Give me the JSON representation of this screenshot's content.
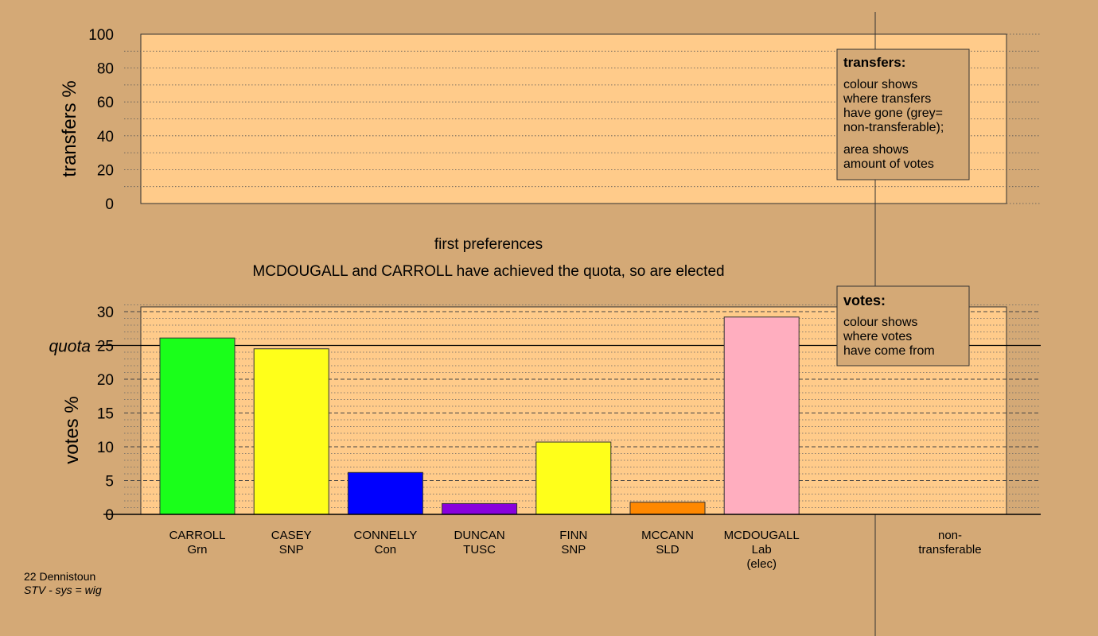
{
  "transfers_chart": {
    "ylabel": "transfers %",
    "ylim": [
      0,
      100
    ],
    "ticks": [
      "0",
      "20",
      "40",
      "60",
      "80",
      "100"
    ],
    "legend": {
      "title": "transfers:",
      "lines1": [
        "colour shows",
        "where transfers",
        "have gone (grey=",
        "non-transferable);"
      ],
      "lines2": [
        "area shows",
        "amount of votes"
      ]
    }
  },
  "stage_title": "first preferences",
  "status_message": "MCDOUGALL and CARROLL have achieved the quota, so are elected",
  "chart_data": {
    "type": "bar",
    "ylabel": "votes %",
    "ylim": [
      0,
      30
    ],
    "ticks": [
      "0",
      "5",
      "10",
      "15",
      "20",
      "25",
      "30"
    ],
    "quota": {
      "label": "quota",
      "value": 25
    },
    "categories": [
      {
        "name": "CARROLL",
        "party": "Grn",
        "note": "",
        "value": 26.1,
        "color": "#1aff1a"
      },
      {
        "name": "CASEY",
        "party": "SNP",
        "note": "",
        "value": 24.5,
        "color": "#ffff1a"
      },
      {
        "name": "CONNELLY",
        "party": "Con",
        "note": "",
        "value": 6.2,
        "color": "#0000ff"
      },
      {
        "name": "DUNCAN",
        "party": "TUSC",
        "note": "",
        "value": 1.6,
        "color": "#8800dd"
      },
      {
        "name": "FINN",
        "party": "SNP",
        "note": "",
        "value": 10.7,
        "color": "#ffff1a"
      },
      {
        "name": "MCCANN",
        "party": "SLD",
        "note": "",
        "value": 1.8,
        "color": "#ff8800"
      },
      {
        "name": "MCDOUGALL",
        "party": "Lab",
        "note": "(elec)",
        "value": 29.2,
        "color": "#ffaebf"
      }
    ],
    "extra_category": {
      "line1": "non-",
      "line2": "transferable"
    },
    "legend": {
      "title": "votes:",
      "lines": [
        "colour shows",
        "where votes",
        "have come from"
      ]
    }
  },
  "footer": {
    "ward": "22 Dennistoun",
    "system": "STV - sys = wig"
  },
  "colors": {
    "background": "#d4a976",
    "plot_fill": "#ffcb8a"
  }
}
